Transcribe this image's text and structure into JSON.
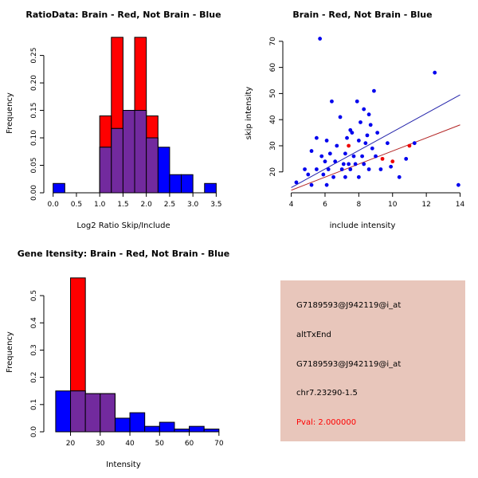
{
  "figure": {
    "bg": "#ffffff"
  },
  "info_panel": {
    "bg": "#e8c6bb",
    "lines": [
      {
        "text": "G7189593@J942119@i_at",
        "color": "#000000"
      },
      {
        "text": "altTxEnd",
        "color": "#000000"
      },
      {
        "text": "G7189593@J942119@i_at",
        "color": "#000000"
      },
      {
        "text": "chr7.23290-1.5",
        "color": "#000000"
      },
      {
        "text": "Pval: 2.000000",
        "color": "#ff0000"
      }
    ]
  },
  "chart_data": [
    {
      "id": "hist_ratio",
      "type": "histogram",
      "title": "RatioData: Brain - Red, Not Brain - Blue",
      "xlabel": "Log2 Ratio Skip/Include",
      "ylabel": "Frequency",
      "xlim": [
        -0.2,
        3.75
      ],
      "ylim": [
        0,
        0.29
      ],
      "xticks": [
        0,
        0.5,
        1,
        1.5,
        2,
        2.5,
        3,
        3.5
      ],
      "xtick_labels": [
        "0.0",
        "0.5",
        "1.0",
        "1.5",
        "2.0",
        "2.5",
        "3.0",
        "3.5"
      ],
      "yticks": [
        0,
        0.05,
        0.1,
        0.15,
        0.2,
        0.25
      ],
      "ytick_labels": [
        "0.00",
        "0.05",
        "0.10",
        "0.15",
        "0.20",
        "0.25"
      ],
      "overlap_color": "#722a9e",
      "series": [
        {
          "name": "Brain",
          "color": "#ff0000",
          "bins": [
            {
              "x0": 1.0,
              "x1": 1.25,
              "f": 0.14
            },
            {
              "x0": 1.25,
              "x1": 1.5,
              "f": 0.283
            },
            {
              "x0": 1.5,
              "x1": 1.75,
              "f": 0.15
            },
            {
              "x0": 1.75,
              "x1": 2.0,
              "f": 0.283
            },
            {
              "x0": 2.0,
              "x1": 2.25,
              "f": 0.14
            }
          ]
        },
        {
          "name": "Not Brain",
          "color": "#0000ff",
          "bins": [
            {
              "x0": 0.0,
              "x1": 0.25,
              "f": 0.017
            },
            {
              "x0": 1.0,
              "x1": 1.25,
              "f": 0.083
            },
            {
              "x0": 1.25,
              "x1": 1.5,
              "f": 0.117
            },
            {
              "x0": 1.5,
              "x1": 1.75,
              "f": 0.15
            },
            {
              "x0": 1.75,
              "x1": 2.0,
              "f": 0.15
            },
            {
              "x0": 2.0,
              "x1": 2.25,
              "f": 0.1
            },
            {
              "x0": 2.25,
              "x1": 2.5,
              "f": 0.083
            },
            {
              "x0": 2.5,
              "x1": 2.75,
              "f": 0.033
            },
            {
              "x0": 2.75,
              "x1": 3.0,
              "f": 0.033
            },
            {
              "x0": 3.25,
              "x1": 3.5,
              "f": 0.017
            }
          ]
        }
      ]
    },
    {
      "id": "scatter_intensity",
      "type": "scatter",
      "title": "Brain - Red, Not Brain - Blue",
      "xlabel": "include intensity",
      "ylabel": "skip intensity",
      "xlim": [
        3.5,
        14.4
      ],
      "ylim": [
        12,
        73
      ],
      "xticks": [
        4,
        6,
        8,
        10,
        12,
        14
      ],
      "xtick_labels": [
        "4",
        "6",
        "8",
        "10",
        "12",
        "14"
      ],
      "yticks": [
        20,
        30,
        40,
        50,
        60,
        70
      ],
      "ytick_labels": [
        "20",
        "30",
        "40",
        "50",
        "60",
        "70"
      ],
      "series": [
        {
          "name": "Not Brain",
          "color": "#0000ee",
          "points": [
            [
              5.7,
              71
            ],
            [
              12.5,
              58
            ],
            [
              8.9,
              51
            ],
            [
              6.4,
              47
            ],
            [
              7.9,
              47
            ],
            [
              8.3,
              44
            ],
            [
              8.6,
              42
            ],
            [
              6.9,
              41
            ],
            [
              8.1,
              39
            ],
            [
              8.7,
              38
            ],
            [
              7.5,
              36
            ],
            [
              7.6,
              35
            ],
            [
              9.1,
              35
            ],
            [
              8.5,
              34
            ],
            [
              5.5,
              33
            ],
            [
              7.3,
              33
            ],
            [
              6.1,
              32
            ],
            [
              8.0,
              32
            ],
            [
              8.4,
              31
            ],
            [
              9.7,
              31
            ],
            [
              11.3,
              31
            ],
            [
              6.7,
              30
            ],
            [
              8.8,
              29
            ],
            [
              5.2,
              28
            ],
            [
              6.3,
              27
            ],
            [
              7.2,
              27
            ],
            [
              5.8,
              26
            ],
            [
              7.7,
              26
            ],
            [
              8.2,
              26
            ],
            [
              9.0,
              26
            ],
            [
              10.8,
              25
            ],
            [
              6.0,
              24
            ],
            [
              6.6,
              24
            ],
            [
              7.1,
              23
            ],
            [
              7.4,
              23
            ],
            [
              7.8,
              23
            ],
            [
              8.3,
              23
            ],
            [
              9.9,
              22
            ],
            [
              4.8,
              21
            ],
            [
              5.5,
              21
            ],
            [
              6.2,
              21
            ],
            [
              7.0,
              21
            ],
            [
              7.5,
              21
            ],
            [
              8.6,
              21
            ],
            [
              9.3,
              21
            ],
            [
              5.0,
              19
            ],
            [
              5.9,
              19
            ],
            [
              6.5,
              18
            ],
            [
              7.2,
              18
            ],
            [
              8.0,
              18
            ],
            [
              10.4,
              18
            ],
            [
              4.3,
              16
            ],
            [
              5.2,
              15
            ],
            [
              6.1,
              15
            ],
            [
              13.9,
              15
            ]
          ]
        },
        {
          "name": "Brain",
          "color": "#ee0000",
          "points": [
            [
              7.4,
              30
            ],
            [
              9.4,
              25
            ],
            [
              10.0,
              24
            ],
            [
              11.0,
              30
            ]
          ]
        }
      ],
      "lines": [
        {
          "name": "not-brain-fit",
          "color": "#2222aa",
          "x": [
            4,
            14
          ],
          "y": [
            14,
            49.5
          ]
        },
        {
          "name": "brain-fit",
          "color": "#b22222",
          "x": [
            4,
            14
          ],
          "y": [
            13,
            38
          ]
        }
      ]
    },
    {
      "id": "hist_gene",
      "type": "histogram",
      "title": "Gene Itensity: Brain - Red, Not Brain - Blue",
      "xlabel": "Intensity",
      "ylabel": "Frequency",
      "xlim": [
        11,
        73
      ],
      "ylim": [
        0,
        0.585
      ],
      "xticks": [
        20,
        30,
        40,
        50,
        60,
        70
      ],
      "xtick_labels": [
        "20",
        "30",
        "40",
        "50",
        "60",
        "70"
      ],
      "yticks": [
        0,
        0.1,
        0.2,
        0.3,
        0.4,
        0.5
      ],
      "ytick_labels": [
        "0.0",
        "0.1",
        "0.2",
        "0.3",
        "0.4",
        "0.5"
      ],
      "overlap_color": "#722a9e",
      "series": [
        {
          "name": "Brain",
          "color": "#ff0000",
          "bins": [
            {
              "x0": 20,
              "x1": 25,
              "f": 0.565
            },
            {
              "x0": 25,
              "x1": 30,
              "f": 0.14
            },
            {
              "x0": 30,
              "x1": 35,
              "f": 0.14
            }
          ]
        },
        {
          "name": "Not Brain",
          "color": "#0000ff",
          "bins": [
            {
              "x0": 15,
              "x1": 20,
              "f": 0.15
            },
            {
              "x0": 20,
              "x1": 25,
              "f": 0.15
            },
            {
              "x0": 25,
              "x1": 30,
              "f": 0.14
            },
            {
              "x0": 30,
              "x1": 35,
              "f": 0.14
            },
            {
              "x0": 35,
              "x1": 40,
              "f": 0.05
            },
            {
              "x0": 40,
              "x1": 45,
              "f": 0.07
            },
            {
              "x0": 45,
              "x1": 50,
              "f": 0.02
            },
            {
              "x0": 50,
              "x1": 55,
              "f": 0.035
            },
            {
              "x0": 55,
              "x1": 60,
              "f": 0.01
            },
            {
              "x0": 60,
              "x1": 65,
              "f": 0.02
            },
            {
              "x0": 65,
              "x1": 70,
              "f": 0.01
            }
          ]
        }
      ]
    }
  ]
}
